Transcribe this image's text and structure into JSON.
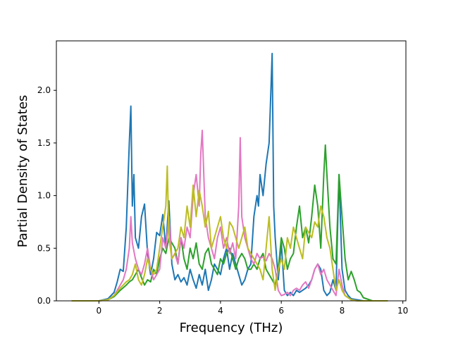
{
  "chart_data": {
    "type": "line",
    "title": "",
    "xlabel": "Frequency (THz)",
    "ylabel": "Partial Density of States",
    "xlim": [
      -1.4,
      10.1
    ],
    "ylim": [
      0,
      2.47
    ],
    "xticks": [
      0,
      2,
      4,
      6,
      8,
      10
    ],
    "xtick_labels": [
      "0",
      "2",
      "4",
      "6",
      "8",
      "10"
    ],
    "yticks": [
      0.0,
      0.5,
      1.0,
      1.5,
      2.0
    ],
    "ytick_labels": [
      "0.0",
      "0.5",
      "1.0",
      "1.5",
      "2.0"
    ],
    "grid": false,
    "legend": "none",
    "series": [
      {
        "color": "#1f77b4",
        "x": [
          -0.9,
          0.0,
          0.3,
          0.5,
          0.6,
          0.7,
          0.8,
          0.9,
          1.0,
          1.05,
          1.1,
          1.15,
          1.2,
          1.3,
          1.4,
          1.5,
          1.6,
          1.7,
          1.8,
          1.9,
          2.0,
          2.1,
          2.2,
          2.3,
          2.4,
          2.5,
          2.6,
          2.7,
          2.8,
          2.9,
          3.0,
          3.1,
          3.2,
          3.3,
          3.4,
          3.5,
          3.6,
          3.7,
          3.8,
          3.9,
          4.0,
          4.1,
          4.2,
          4.3,
          4.4,
          4.5,
          4.6,
          4.7,
          4.8,
          4.9,
          5.0,
          5.1,
          5.2,
          5.25,
          5.3,
          5.4,
          5.5,
          5.6,
          5.7,
          5.75,
          5.8,
          5.9,
          6.0,
          6.1,
          6.2,
          6.3,
          6.4,
          6.5,
          6.6,
          6.7,
          6.8,
          6.9,
          7.0,
          7.1,
          7.2,
          7.3,
          7.4,
          7.5,
          7.6,
          7.7,
          7.8,
          7.9,
          8.0,
          8.1,
          8.2,
          8.3,
          8.5,
          8.7,
          9.0,
          9.5
        ],
        "y": [
          0.0,
          0.0,
          0.02,
          0.08,
          0.18,
          0.3,
          0.28,
          0.7,
          1.5,
          1.85,
          0.9,
          1.2,
          0.6,
          0.5,
          0.8,
          0.92,
          0.45,
          0.25,
          0.4,
          0.65,
          0.62,
          0.82,
          0.5,
          0.95,
          0.35,
          0.2,
          0.25,
          0.18,
          0.22,
          0.15,
          0.3,
          0.2,
          0.12,
          0.25,
          0.15,
          0.3,
          0.1,
          0.2,
          0.35,
          0.3,
          0.25,
          0.4,
          0.5,
          0.3,
          0.45,
          0.35,
          0.25,
          0.15,
          0.2,
          0.3,
          0.35,
          0.8,
          1.0,
          0.9,
          1.2,
          1.0,
          1.3,
          1.5,
          2.35,
          0.9,
          0.6,
          0.2,
          0.55,
          0.1,
          0.05,
          0.08,
          0.05,
          0.1,
          0.08,
          0.1,
          0.12,
          0.15,
          0.2,
          0.3,
          0.35,
          0.3,
          0.1,
          0.05,
          0.08,
          0.2,
          0.1,
          1.2,
          0.3,
          0.1,
          0.05,
          0.02,
          0.01,
          0.0,
          0.0,
          0.0
        ]
      },
      {
        "color": "#2ca02c",
        "x": [
          -0.9,
          0.0,
          0.3,
          0.5,
          0.7,
          0.9,
          1.0,
          1.1,
          1.2,
          1.3,
          1.4,
          1.5,
          1.6,
          1.7,
          1.8,
          1.9,
          2.0,
          2.1,
          2.2,
          2.3,
          2.4,
          2.5,
          2.6,
          2.7,
          2.8,
          2.9,
          3.0,
          3.1,
          3.2,
          3.3,
          3.4,
          3.5,
          3.6,
          3.7,
          3.8,
          3.9,
          4.0,
          4.1,
          4.2,
          4.3,
          4.4,
          4.5,
          4.6,
          4.7,
          4.8,
          4.9,
          5.0,
          5.1,
          5.2,
          5.3,
          5.4,
          5.5,
          5.6,
          5.7,
          5.8,
          5.9,
          6.0,
          6.1,
          6.2,
          6.3,
          6.4,
          6.5,
          6.6,
          6.7,
          6.8,
          6.9,
          7.0,
          7.1,
          7.2,
          7.3,
          7.4,
          7.45,
          7.5,
          7.6,
          7.7,
          7.8,
          7.9,
          8.0,
          8.1,
          8.2,
          8.3,
          8.4,
          8.5,
          8.6,
          8.7,
          9.0,
          9.5
        ],
        "y": [
          0.0,
          0.0,
          0.01,
          0.04,
          0.1,
          0.15,
          0.18,
          0.2,
          0.25,
          0.3,
          0.22,
          0.15,
          0.2,
          0.18,
          0.3,
          0.25,
          0.4,
          0.5,
          0.45,
          0.6,
          0.55,
          0.5,
          0.35,
          0.6,
          0.4,
          0.3,
          0.5,
          0.4,
          0.55,
          0.35,
          0.3,
          0.45,
          0.5,
          0.35,
          0.3,
          0.25,
          0.4,
          0.35,
          0.45,
          0.5,
          0.4,
          0.3,
          0.4,
          0.45,
          0.4,
          0.3,
          0.3,
          0.35,
          0.3,
          0.4,
          0.45,
          0.3,
          0.25,
          0.2,
          0.15,
          0.3,
          0.6,
          0.5,
          0.3,
          0.4,
          0.45,
          0.7,
          0.9,
          0.6,
          0.7,
          0.55,
          0.8,
          1.1,
          0.9,
          0.5,
          1.2,
          1.48,
          1.2,
          0.7,
          0.4,
          0.35,
          1.2,
          0.8,
          0.4,
          0.2,
          0.28,
          0.2,
          0.1,
          0.08,
          0.03,
          0.0,
          0.0
        ]
      },
      {
        "color": "#e377c2",
        "x": [
          -0.9,
          0.0,
          0.3,
          0.5,
          0.7,
          0.8,
          0.9,
          1.0,
          1.05,
          1.1,
          1.2,
          1.3,
          1.4,
          1.5,
          1.6,
          1.7,
          1.8,
          1.9,
          2.0,
          2.1,
          2.2,
          2.3,
          2.4,
          2.5,
          2.6,
          2.7,
          2.8,
          2.9,
          3.0,
          3.1,
          3.2,
          3.3,
          3.35,
          3.4,
          3.5,
          3.6,
          3.7,
          3.8,
          3.9,
          4.0,
          4.1,
          4.2,
          4.3,
          4.4,
          4.5,
          4.6,
          4.65,
          4.7,
          4.8,
          4.9,
          5.0,
          5.1,
          5.2,
          5.3,
          5.4,
          5.5,
          5.6,
          5.7,
          5.8,
          5.9,
          6.0,
          6.1,
          6.2,
          6.3,
          6.4,
          6.5,
          6.6,
          6.7,
          6.8,
          6.9,
          7.0,
          7.1,
          7.2,
          7.3,
          7.4,
          7.5,
          7.6,
          7.7,
          7.8,
          7.9,
          8.0,
          8.1,
          8.2,
          8.3,
          8.5,
          9.0,
          9.5
        ],
        "y": [
          0.0,
          0.0,
          0.01,
          0.05,
          0.15,
          0.2,
          0.3,
          0.5,
          0.8,
          0.55,
          0.4,
          0.3,
          0.25,
          0.35,
          0.5,
          0.3,
          0.2,
          0.25,
          0.3,
          0.6,
          0.5,
          0.8,
          0.4,
          0.45,
          0.35,
          0.6,
          0.5,
          0.7,
          0.6,
          1.0,
          1.2,
          0.9,
          1.4,
          1.62,
          0.8,
          0.6,
          0.5,
          0.4,
          0.6,
          0.7,
          0.5,
          0.6,
          0.45,
          0.55,
          0.4,
          0.9,
          1.55,
          0.8,
          0.6,
          0.5,
          0.4,
          0.35,
          0.45,
          0.4,
          0.42,
          0.38,
          0.45,
          0.4,
          0.3,
          0.1,
          0.05,
          0.06,
          0.08,
          0.05,
          0.1,
          0.12,
          0.1,
          0.15,
          0.18,
          0.12,
          0.2,
          0.3,
          0.35,
          0.25,
          0.3,
          0.2,
          0.15,
          0.1,
          0.05,
          0.3,
          0.15,
          0.05,
          0.03,
          0.01,
          0.0,
          0.0,
          0.0
        ]
      },
      {
        "color": "#bcbd22",
        "x": [
          -0.9,
          0.0,
          0.3,
          0.5,
          0.7,
          0.9,
          1.0,
          1.1,
          1.2,
          1.3,
          1.4,
          1.5,
          1.6,
          1.7,
          1.8,
          1.9,
          2.0,
          2.1,
          2.2,
          2.25,
          2.3,
          2.4,
          2.5,
          2.6,
          2.7,
          2.8,
          2.9,
          3.0,
          3.1,
          3.2,
          3.3,
          3.4,
          3.5,
          3.6,
          3.7,
          3.8,
          3.9,
          4.0,
          4.1,
          4.2,
          4.3,
          4.4,
          4.5,
          4.6,
          4.7,
          4.8,
          4.9,
          5.0,
          5.1,
          5.2,
          5.3,
          5.4,
          5.5,
          5.6,
          5.7,
          5.8,
          5.9,
          6.0,
          6.1,
          6.2,
          6.3,
          6.4,
          6.5,
          6.6,
          6.7,
          6.8,
          6.9,
          7.0,
          7.1,
          7.2,
          7.3,
          7.4,
          7.5,
          7.6,
          7.7,
          7.8,
          7.9,
          8.0,
          8.1,
          8.2,
          8.3,
          8.5,
          9.0,
          9.5
        ],
        "y": [
          0.0,
          0.0,
          0.01,
          0.05,
          0.12,
          0.18,
          0.2,
          0.25,
          0.35,
          0.2,
          0.15,
          0.25,
          0.4,
          0.3,
          0.25,
          0.3,
          0.5,
          0.7,
          0.9,
          1.28,
          0.6,
          0.4,
          0.45,
          0.5,
          0.7,
          0.6,
          0.9,
          0.7,
          1.1,
          0.8,
          1.05,
          0.9,
          0.7,
          0.85,
          0.5,
          0.6,
          0.7,
          0.8,
          0.6,
          0.5,
          0.75,
          0.7,
          0.6,
          0.5,
          0.6,
          0.7,
          0.5,
          0.45,
          0.4,
          0.35,
          0.3,
          0.2,
          0.5,
          0.8,
          0.3,
          0.1,
          0.3,
          0.4,
          0.3,
          0.6,
          0.5,
          0.7,
          0.6,
          0.5,
          0.4,
          0.7,
          0.65,
          0.6,
          0.75,
          0.7,
          0.9,
          0.8,
          0.6,
          0.5,
          0.3,
          0.1,
          0.2,
          0.1,
          0.05,
          0.03,
          0.01,
          0.0,
          0.0,
          0.0
        ]
      }
    ]
  }
}
